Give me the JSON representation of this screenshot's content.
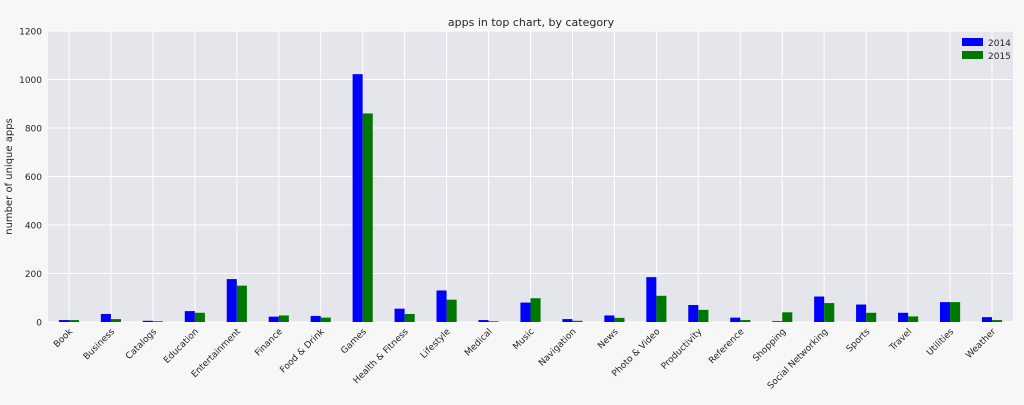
{
  "chart_data": {
    "type": "bar",
    "title": "apps in top chart, by category",
    "xlabel": "",
    "ylabel": "number of unique apps",
    "ylim": [
      0,
      1200
    ],
    "yticks": [
      0,
      200,
      400,
      600,
      800,
      1000,
      1200
    ],
    "grid": true,
    "legend_position": "top-right",
    "categories": [
      "Book",
      "Business",
      "Catalogs",
      "Education",
      "Entertainment",
      "Finance",
      "Food & Drink",
      "Games",
      "Health & Fitness",
      "Lifestyle",
      "Medical",
      "Music",
      "Navigation",
      "News",
      "Photo & Video",
      "Productivity",
      "Reference",
      "Shopping",
      "Social Networking",
      "Sports",
      "Travel",
      "Utilities",
      "Weather"
    ],
    "series": [
      {
        "name": "2014",
        "color": "#0000ff",
        "values": [
          8,
          33,
          5,
          45,
          177,
          22,
          25,
          1022,
          55,
          130,
          8,
          80,
          12,
          27,
          185,
          70,
          18,
          3,
          105,
          72,
          38,
          82,
          20
        ]
      },
      {
        "name": "2015",
        "color": "#007700",
        "values": [
          8,
          12,
          3,
          38,
          150,
          27,
          18,
          860,
          33,
          92,
          3,
          98,
          5,
          17,
          108,
          50,
          8,
          40,
          78,
          38,
          23,
          82,
          8
        ]
      }
    ]
  }
}
